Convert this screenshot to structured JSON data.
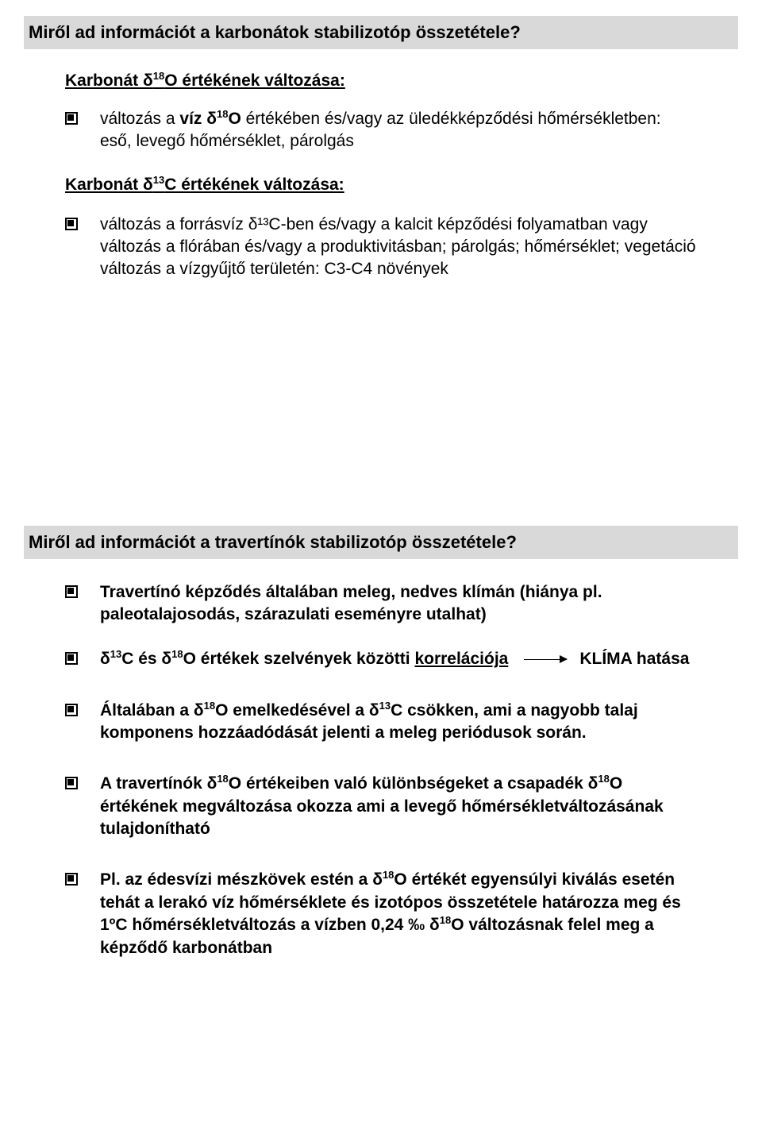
{
  "header1": "Miről ad információt a karbonátok stabilizotóp összetétele?",
  "section1_title_a": "Karbonát δ",
  "section1_title_b": "O értékének változása:",
  "section1_sup": "18",
  "section1_bullet_a": "változás a ",
  "section1_bullet_b": "víz δ",
  "section1_bullet_sup": "18",
  "section1_bullet_c": "O",
  "section1_bullet_d": " értékében és/vagy az üledékképződési hőmérsékletben: eső, levegő hőmérséklet, párolgás",
  "section2_title_a": "Karbonát δ",
  "section2_title_sup": "13",
  "section2_title_b": "C értékének változása:",
  "section2_bullet": "változás a forrásvíz δ¹³C-ben és/vagy a kalcit képződési folyamatban vagy változás a flórában és/vagy a produktivitásban; párolgás; hőmérséklet; vegetáció változás a vízgyűjtő területén: C3-C4 növények",
  "header2": "Miről ad információt a travertínók stabilizotóp összetétele?",
  "h2_b1": "Travertínó képződés általában meleg, nedves klímán (hiánya pl. paleotalajosodás, szárazulati eseményre utalhat)",
  "h2_b2_pre": "δ",
  "h2_b2_sup1": "13",
  "h2_b2_mid1": "C és δ",
  "h2_b2_sup2": "18",
  "h2_b2_mid2": "O értékek szelvények közötti ",
  "h2_b2_under": "korrelációja",
  "h2_b2_right": "KLÍMA hatása",
  "h2_b3_a": "Általában a δ",
  "h2_b3_sup1": "18",
  "h2_b3_b": "O emelkedésével a δ",
  "h2_b3_sup2": "13",
  "h2_b3_c": "C csökken, ami a nagyobb talaj komponens hozzáadódását jelenti a meleg periódusok során.",
  "h2_b4_a": "A travertínók δ",
  "h2_b4_sup1": "18",
  "h2_b4_b": "O értékeiben való különbségeket a csapadék δ",
  "h2_b4_sup2": "18",
  "h2_b4_c": "O értékének megváltozása okozza ami a levegő hőmérsékletváltozásának tulajdonítható",
  "h2_b5_a": "Pl. az édesvízi mészkövek estén a δ",
  "h2_b5_sup1": "18",
  "h2_b5_b": "O értékét egyensúlyi kiválás esetén tehát a lerakó víz hőmérséklete és izotópos összetétele határozza meg és 1ºC hőmérsékletváltozás a vízben 0,24 ‰ δ",
  "h2_b5_sup2": "18",
  "h2_b5_c": "O változásnak felel meg a képződő karbonátban"
}
